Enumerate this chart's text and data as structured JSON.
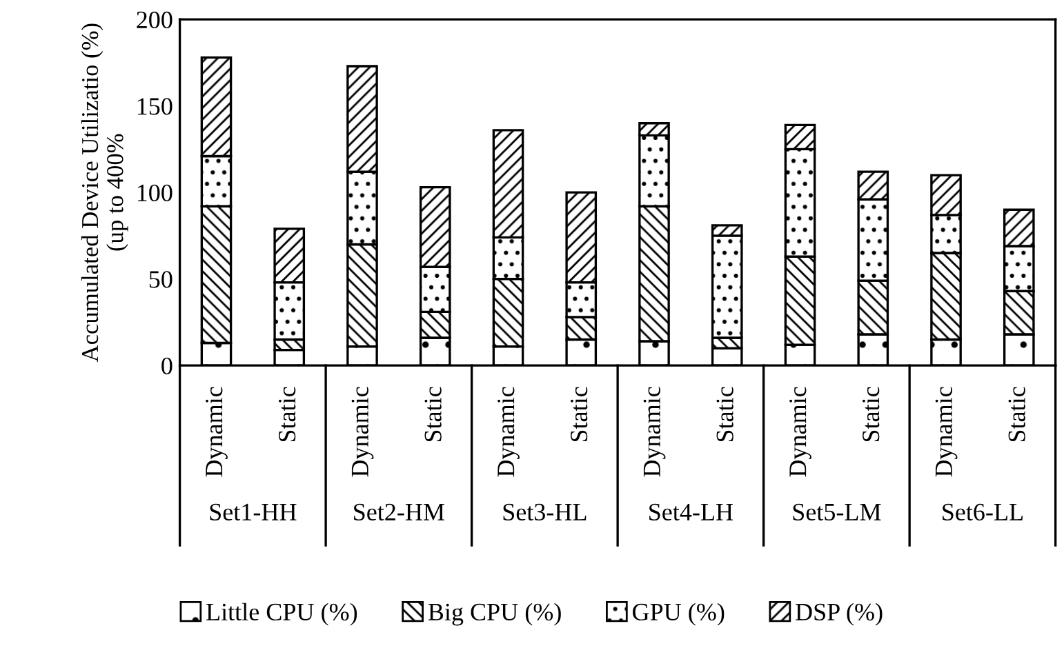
{
  "chart_data": {
    "type": "bar",
    "stacked": true,
    "categories": [
      "Dynamic",
      "Static",
      "Dynamic",
      "Static",
      "Dynamic",
      "Static",
      "Dynamic",
      "Static",
      "Dynamic",
      "Static",
      "Dynamic",
      "Static"
    ],
    "series": [
      {
        "name": "Little CPU (%)",
        "color": "#000000",
        "values": [
          13,
          9,
          11,
          16,
          11,
          15,
          14,
          10,
          12,
          18,
          15,
          18
        ]
      },
      {
        "name": "Big CPU (%)",
        "color": "#000000",
        "values": [
          79,
          6,
          59,
          15,
          39,
          13,
          78,
          6,
          51,
          31,
          50,
          25
        ]
      },
      {
        "name": "GPU (%)",
        "color": "#000000",
        "values": [
          29,
          33,
          42,
          26,
          24,
          20,
          41,
          59,
          62,
          47,
          22,
          26
        ]
      },
      {
        "name": "DSP (%)",
        "color": "#000000",
        "values": [
          57,
          31,
          61,
          46,
          62,
          52,
          7,
          6,
          14,
          16,
          23,
          21
        ]
      }
    ],
    "ylabel": "Accumulated Device Utilizatio (%)\n(up to 400%",
    "ylim": [
      0,
      200
    ],
    "yticks": [
      0,
      50,
      100,
      150,
      200
    ],
    "annotations": [
      "Set1-HH",
      "Set2-HM",
      "Set3-HL",
      "Set4-LH",
      "Set5-LM",
      "Set6-LL"
    ],
    "legend": "bottom",
    "grid": false
  }
}
